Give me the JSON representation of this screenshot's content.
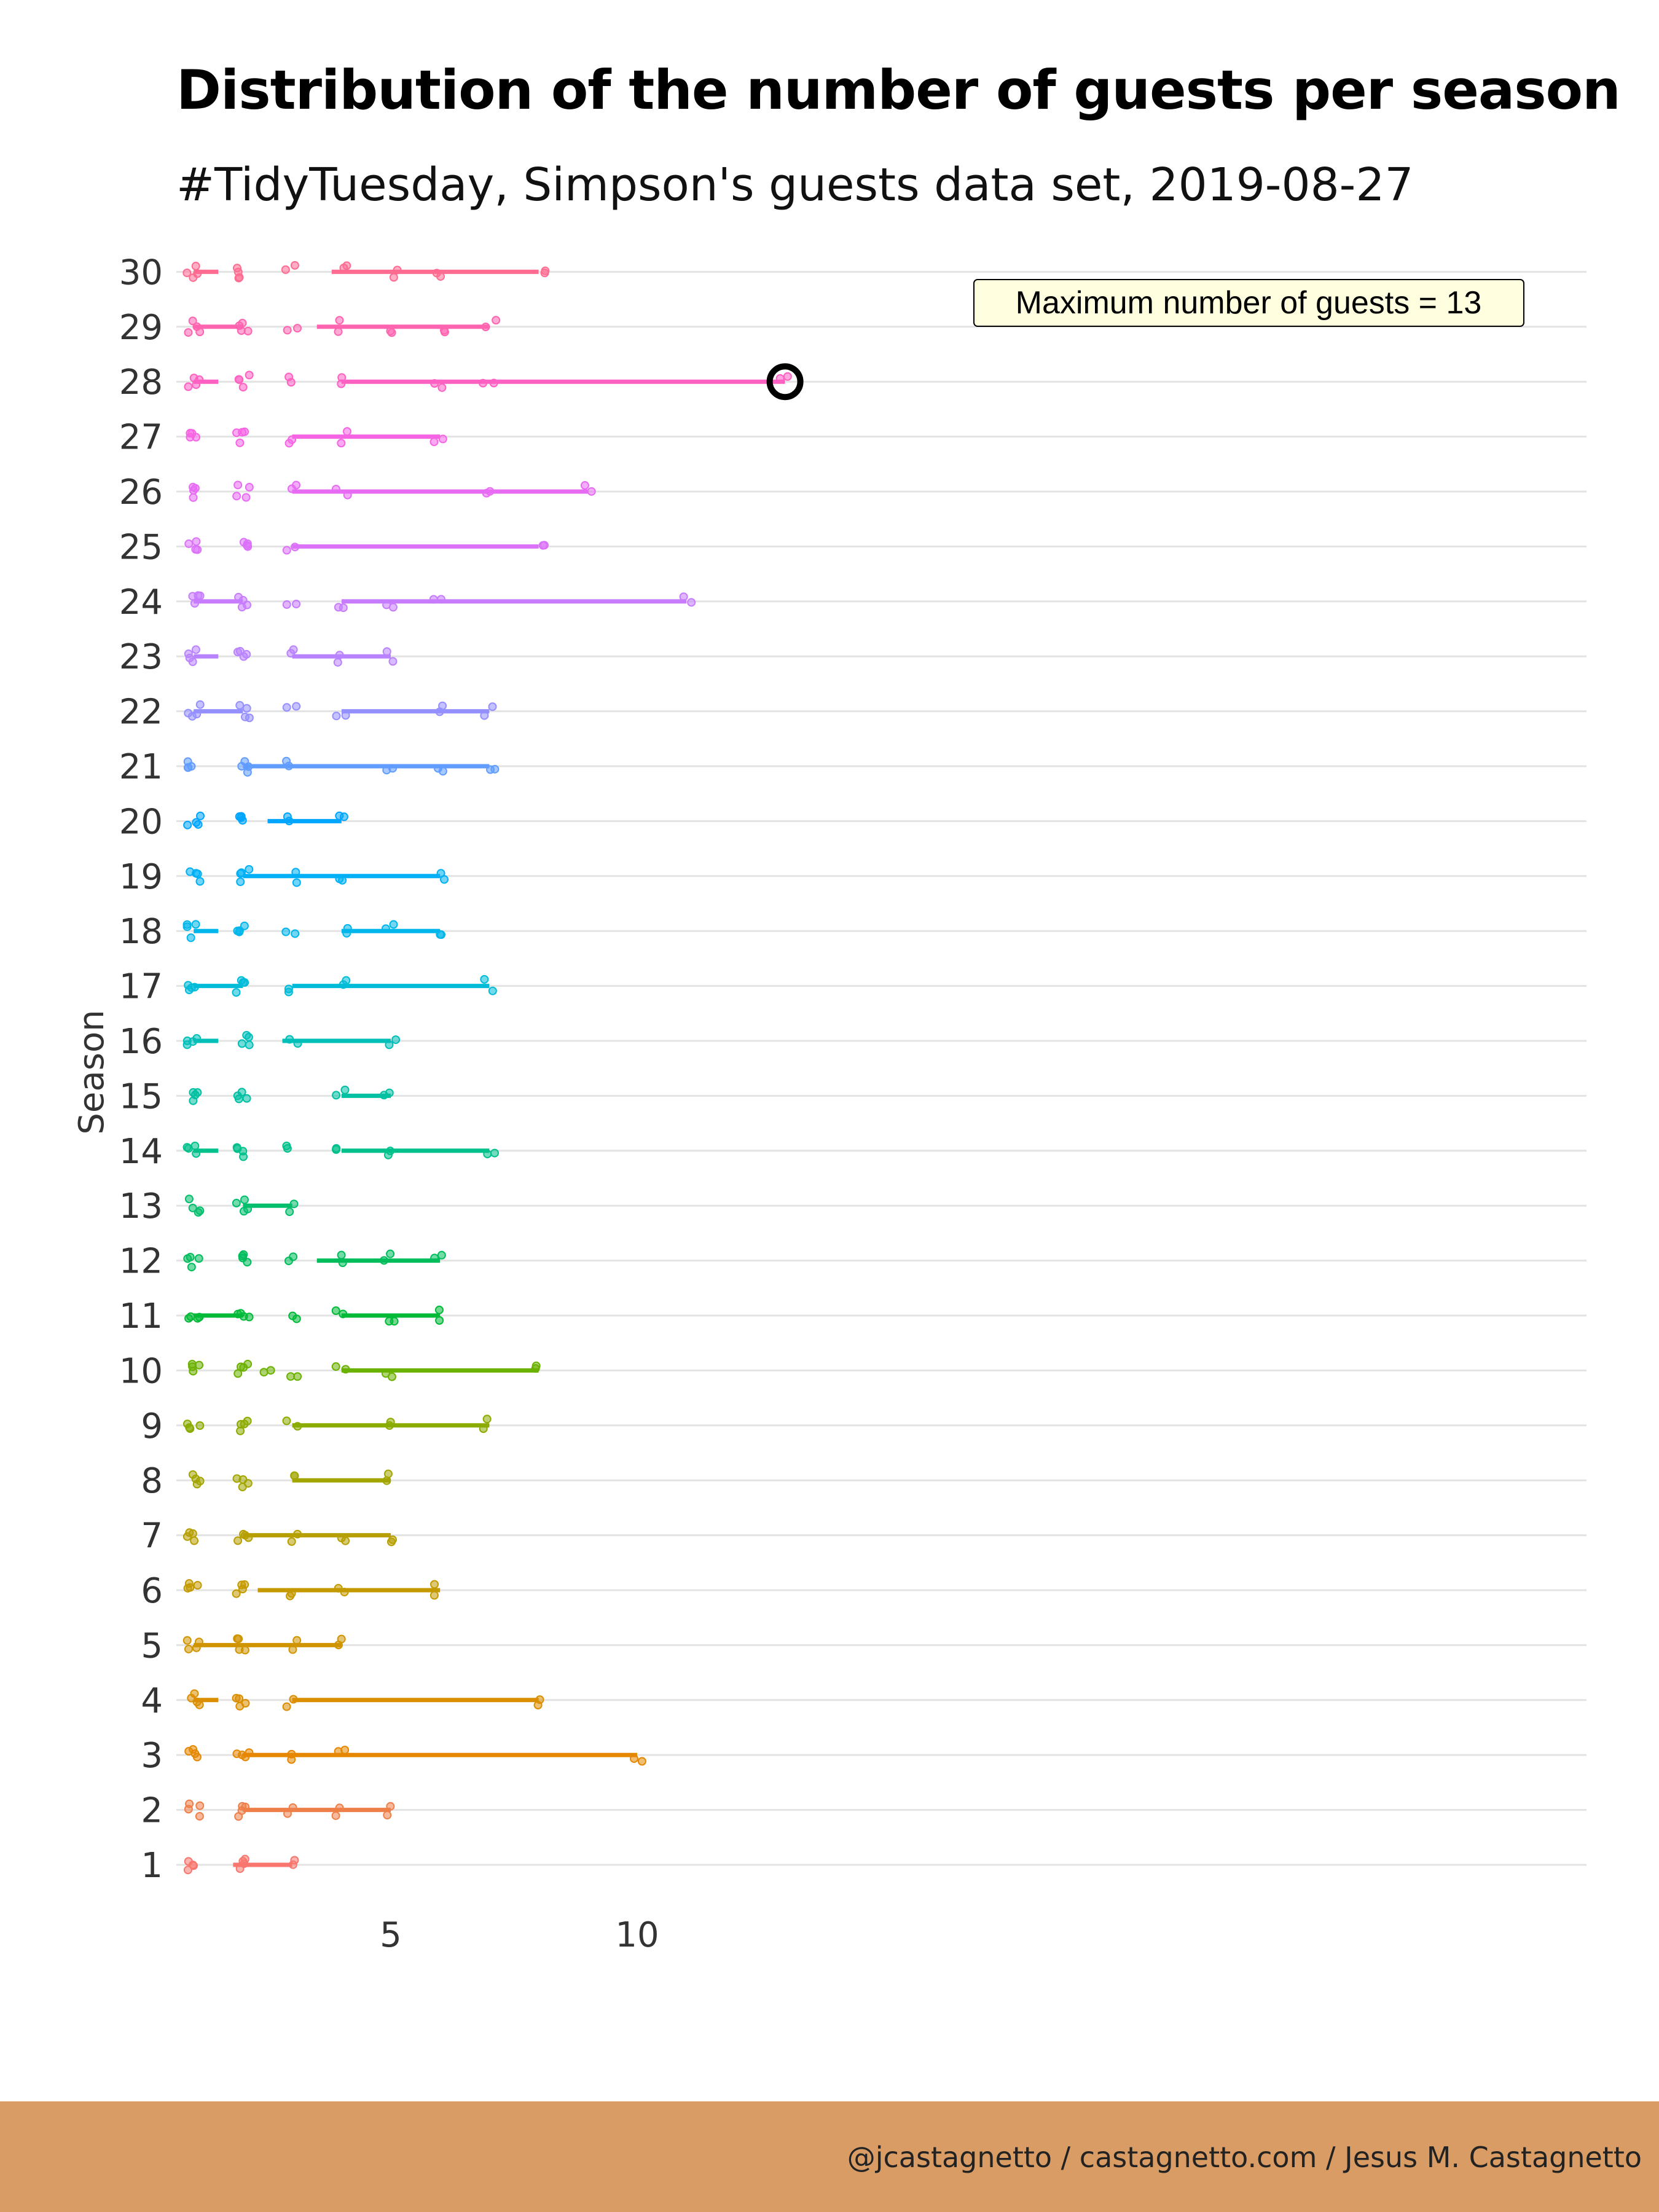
{
  "title": "Distribution of the number of guests per season",
  "subtitle": "#TidyTuesday, Simpson's guests data set, 2019-08-27",
  "footer": "@jcastagnetto / castagnetto.com / Jesus M. Castagnetto",
  "chart_data": {
    "type": "scatter",
    "title": "Distribution of the number of guests per season",
    "subtitle": "#TidyTuesday, Simpson's guests data set, 2019-08-27",
    "xlabel": "",
    "ylabel": "Season",
    "x_ticks": [
      5,
      10
    ],
    "xlim": [
      0.5,
      14.5
    ],
    "ylim": [
      0.5,
      30.5
    ],
    "grid": "horizontal",
    "legend": "none",
    "annotation": {
      "label": "Maximum number of guests = 13",
      "season": 28,
      "guests": 13
    },
    "seasons": [
      {
        "season": 1,
        "color": "#F8766D",
        "points": [
          1,
          2,
          3
        ],
        "segments": [
          [
            1.8,
            3
          ]
        ]
      },
      {
        "season": 2,
        "color": "#EF7F49",
        "points": [
          1,
          2,
          3,
          4,
          5
        ],
        "segments": [
          [
            2,
            5
          ]
        ]
      },
      {
        "season": 3,
        "color": "#E58700",
        "points": [
          1,
          2,
          3,
          4,
          10
        ],
        "segments": [
          [
            2,
            10
          ]
        ]
      },
      {
        "season": 4,
        "color": "#DB8E00",
        "points": [
          1,
          2,
          3,
          8
        ],
        "segments": [
          [
            1,
            1.5
          ],
          [
            3,
            8
          ]
        ]
      },
      {
        "season": 5,
        "color": "#D09400",
        "points": [
          1,
          2,
          3,
          4
        ],
        "segments": [
          [
            1,
            4
          ]
        ]
      },
      {
        "season": 6,
        "color": "#C49A00",
        "points": [
          1,
          2,
          3,
          4,
          6
        ],
        "segments": [
          [
            2.3,
            6
          ]
        ]
      },
      {
        "season": 7,
        "color": "#B79F00",
        "points": [
          1,
          2,
          3,
          4,
          5
        ],
        "segments": [
          [
            2,
            5
          ]
        ]
      },
      {
        "season": 8,
        "color": "#A3A500",
        "points": [
          1,
          2,
          3,
          5
        ],
        "segments": [
          [
            3,
            5
          ]
        ]
      },
      {
        "season": 9,
        "color": "#8BAB00",
        "points": [
          1,
          2,
          3,
          5,
          7
        ],
        "segments": [
          [
            3,
            7
          ]
        ]
      },
      {
        "season": 10,
        "color": "#6BB100",
        "points": [
          1,
          2,
          2.5,
          3,
          4,
          5,
          8
        ],
        "segments": [
          [
            4,
            8
          ]
        ]
      },
      {
        "season": 11,
        "color": "#00BA38",
        "points": [
          1,
          2,
          3,
          4,
          5,
          6
        ],
        "segments": [
          [
            1,
            2
          ],
          [
            4,
            6
          ]
        ]
      },
      {
        "season": 12,
        "color": "#00BD5C",
        "points": [
          1,
          2,
          3,
          4,
          5,
          6
        ],
        "segments": [
          [
            3.5,
            6
          ]
        ]
      },
      {
        "season": 13,
        "color": "#00BE6C",
        "points": [
          1,
          2,
          3
        ],
        "segments": [
          [
            2,
            3
          ]
        ]
      },
      {
        "season": 14,
        "color": "#00C08B",
        "points": [
          1,
          2,
          3,
          4,
          5,
          7
        ],
        "segments": [
          [
            1,
            1.5
          ],
          [
            4,
            7
          ]
        ]
      },
      {
        "season": 15,
        "color": "#00C0A3",
        "points": [
          1,
          2,
          4,
          5
        ],
        "segments": [
          [
            4,
            5
          ]
        ]
      },
      {
        "season": 16,
        "color": "#00BFB8",
        "points": [
          1,
          2,
          3,
          5
        ],
        "segments": [
          [
            1,
            1.5
          ],
          [
            2.8,
            5
          ]
        ]
      },
      {
        "season": 17,
        "color": "#00BCD8",
        "points": [
          1,
          2,
          3,
          4,
          7
        ],
        "segments": [
          [
            1,
            2
          ],
          [
            3,
            7
          ]
        ]
      },
      {
        "season": 18,
        "color": "#00B6EB",
        "points": [
          1,
          2,
          3,
          4,
          5,
          6
        ],
        "segments": [
          [
            1,
            1.5
          ],
          [
            4,
            6
          ]
        ]
      },
      {
        "season": 19,
        "color": "#00B0F6",
        "points": [
          1,
          2,
          3,
          4,
          6
        ],
        "segments": [
          [
            2,
            6
          ]
        ]
      },
      {
        "season": 20,
        "color": "#00A5FF",
        "points": [
          1,
          2,
          3,
          4
        ],
        "segments": [
          [
            2.5,
            4
          ]
        ]
      },
      {
        "season": 21,
        "color": "#619CFF",
        "points": [
          1,
          2,
          3,
          5,
          6,
          7
        ],
        "segments": [
          [
            2,
            7
          ]
        ]
      },
      {
        "season": 22,
        "color": "#9590FF",
        "points": [
          1,
          2,
          3,
          4,
          6,
          7
        ],
        "segments": [
          [
            1,
            2
          ],
          [
            4,
            7
          ]
        ]
      },
      {
        "season": 23,
        "color": "#B983FF",
        "points": [
          1,
          2,
          3,
          4,
          5
        ],
        "segments": [
          [
            1,
            1.5
          ],
          [
            3,
            5
          ]
        ]
      },
      {
        "season": 24,
        "color": "#C77CFF",
        "points": [
          1,
          2,
          3,
          4,
          5,
          6,
          11
        ],
        "segments": [
          [
            1,
            2
          ],
          [
            4,
            11
          ]
        ]
      },
      {
        "season": 25,
        "color": "#DC71FA",
        "points": [
          1,
          2,
          3,
          8
        ],
        "segments": [
          [
            3,
            8
          ]
        ]
      },
      {
        "season": 26,
        "color": "#E76BF3",
        "points": [
          1,
          2,
          3,
          4,
          7,
          9
        ],
        "segments": [
          [
            3,
            9
          ]
        ]
      },
      {
        "season": 27,
        "color": "#F564E3",
        "points": [
          1,
          2,
          3,
          4,
          6
        ],
        "segments": [
          [
            3,
            6
          ]
        ]
      },
      {
        "season": 28,
        "color": "#FF61C3",
        "points": [
          1,
          2,
          3,
          4,
          6,
          7,
          13
        ],
        "segments": [
          [
            1,
            1.5
          ],
          [
            4,
            13
          ]
        ]
      },
      {
        "season": 29,
        "color": "#FF64B0",
        "points": [
          1,
          2,
          3,
          4,
          5,
          6,
          7
        ],
        "segments": [
          [
            1,
            2
          ],
          [
            3.5,
            7
          ]
        ]
      },
      {
        "season": 30,
        "color": "#FF6C91",
        "points": [
          1,
          2,
          3,
          4,
          5,
          6,
          8
        ],
        "segments": [
          [
            1,
            1.5
          ],
          [
            3.8,
            8
          ]
        ]
      }
    ]
  }
}
